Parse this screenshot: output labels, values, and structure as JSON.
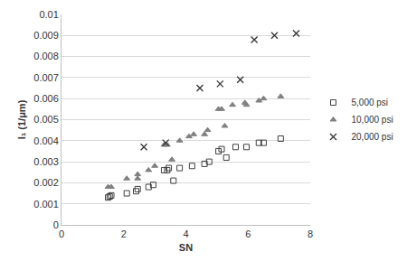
{
  "chart_data": {
    "type": "scatter",
    "x_label": "SN",
    "y_label": "I₁ (1/μm)",
    "xlim": [
      0,
      8
    ],
    "xticks": [
      0,
      2,
      4,
      6,
      8
    ],
    "ylim": [
      0,
      0.01
    ],
    "yticks": [
      0,
      0.001,
      0.002,
      0.003,
      0.004,
      0.005,
      0.006,
      0.007,
      0.008,
      0.009,
      0.01
    ],
    "grid": true,
    "legend": "right",
    "series": [
      {
        "name": "5,000 psi",
        "color": "#404040",
        "marker": "square-open",
        "x": [
          1.5,
          1.55,
          1.6,
          2.1,
          2.4,
          2.45,
          2.8,
          2.95,
          3.3,
          3.4,
          3.45,
          3.6,
          3.8,
          4.2,
          4.6,
          4.75,
          5.05,
          5.15,
          5.3,
          5.6,
          5.95,
          6.35,
          6.5,
          7.05
        ],
        "values": [
          0.0013,
          0.00135,
          0.0014,
          0.0015,
          0.0016,
          0.0017,
          0.0018,
          0.0019,
          0.0026,
          0.0026,
          0.0027,
          0.0021,
          0.0027,
          0.0028,
          0.0029,
          0.003,
          0.0035,
          0.0036,
          0.0032,
          0.0037,
          0.0037,
          0.0039,
          0.0039,
          0.0041
        ]
      },
      {
        "name": "10,000 psi",
        "color": "#808080",
        "marker": "triangle-up",
        "x": [
          1.5,
          1.6,
          2.1,
          2.45,
          2.45,
          2.8,
          3.0,
          3.3,
          3.4,
          3.55,
          3.8,
          4.1,
          4.25,
          4.6,
          4.7,
          5.05,
          5.15,
          5.25,
          5.5,
          5.9,
          5.95,
          6.35,
          6.5,
          7.05
        ],
        "values": [
          0.0018,
          0.0018,
          0.0022,
          0.0024,
          0.0022,
          0.0026,
          0.0028,
          0.0038,
          0.0038,
          0.0031,
          0.004,
          0.0042,
          0.0043,
          0.0043,
          0.0045,
          0.0055,
          0.0055,
          0.0047,
          0.0057,
          0.0058,
          0.0057,
          0.0059,
          0.006,
          0.0061
        ]
      },
      {
        "name": "20,000 psi",
        "color": "#333333",
        "marker": "x",
        "x": [
          2.65,
          3.35,
          4.45,
          5.1,
          5.75,
          6.2,
          6.85,
          7.55
        ],
        "values": [
          0.0037,
          0.0039,
          0.0065,
          0.0067,
          0.0069,
          0.0088,
          0.009,
          0.0091
        ]
      }
    ]
  }
}
